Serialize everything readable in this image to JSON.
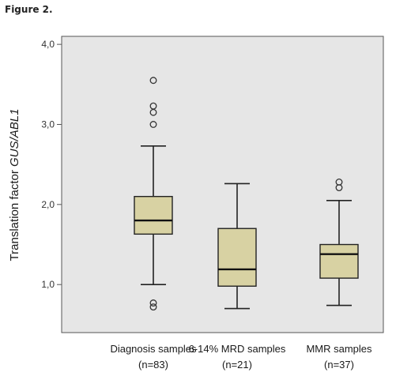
{
  "figure_title": "Figure 2.",
  "chart_data": {
    "type": "boxplot",
    "ylabel_plain": "Translation factor ",
    "ylabel_italic": "GUS/ABL1",
    "ylim": [
      0.4,
      4.1
    ],
    "yticks": [
      {
        "value": 1.0,
        "label": "1,0"
      },
      {
        "value": 2.0,
        "label": "2,0"
      },
      {
        "value": 3.0,
        "label": "3,0"
      },
      {
        "value": 4.0,
        "label": "4,0"
      }
    ],
    "grid": false,
    "colors": {
      "plot_background": "#e6e6e6",
      "box_fill": "#d8d2a3",
      "line": "#222222",
      "axis": "#555555"
    },
    "categories": [
      {
        "name": "Diagnosis samples",
        "n_label": "(n=83)",
        "whisker_low": 1.0,
        "q1": 1.63,
        "median": 1.8,
        "q3": 2.1,
        "whisker_high": 2.73,
        "outliers": [
          0.72,
          0.77,
          3.0,
          3.15,
          3.23,
          3.55
        ]
      },
      {
        "name": "6-14% MRD samples",
        "n_label": "(n=21)",
        "whisker_low": 0.7,
        "q1": 0.98,
        "median": 1.19,
        "q3": 1.7,
        "whisker_high": 2.26,
        "outliers": []
      },
      {
        "name": "MMR samples",
        "n_label": "(n=37)",
        "whisker_low": 0.74,
        "q1": 1.08,
        "median": 1.38,
        "q3": 1.5,
        "whisker_high": 2.05,
        "outliers": [
          2.21,
          2.28
        ]
      }
    ]
  }
}
